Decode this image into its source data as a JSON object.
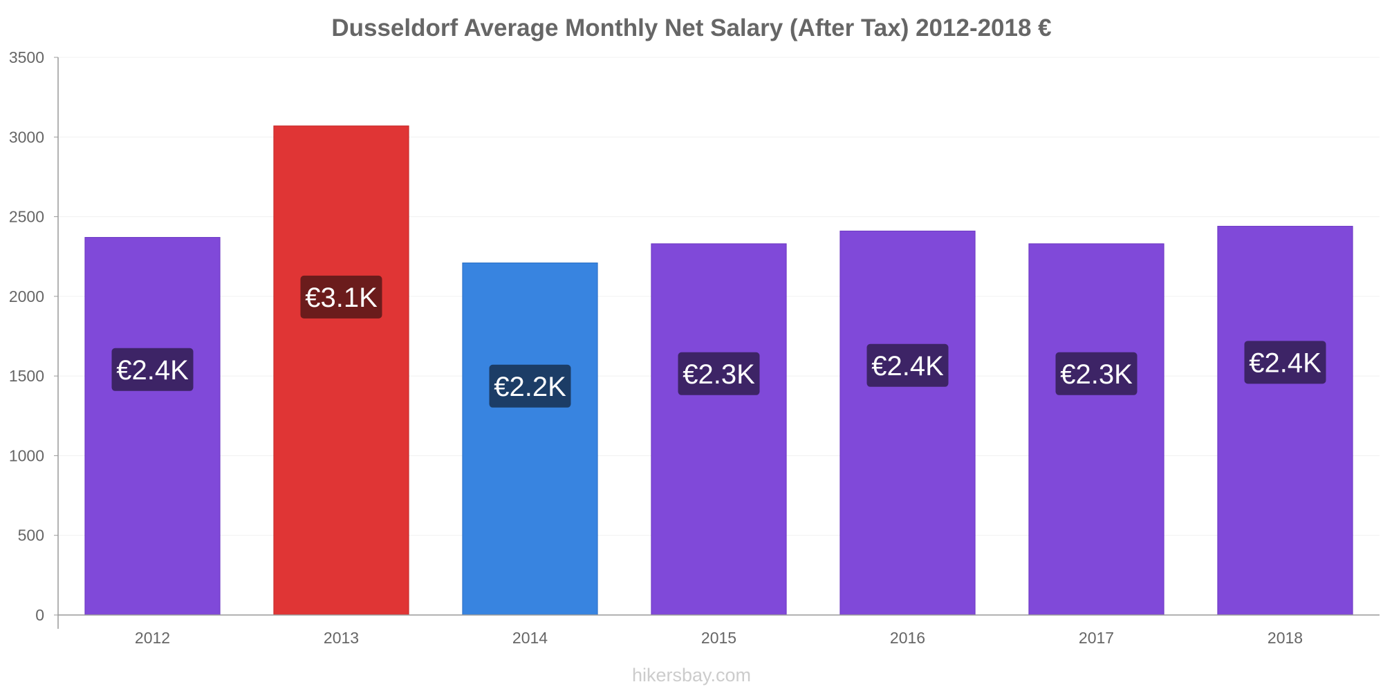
{
  "chart_data": {
    "type": "bar",
    "title": "Dusseldorf Average Monthly Net Salary (After Tax) 2012-2018 €",
    "xlabel": "",
    "ylabel": "",
    "ylim": [
      0,
      3500
    ],
    "yticks": [
      "0",
      "500",
      "1000",
      "1500",
      "2000",
      "2500",
      "3000",
      "3500"
    ],
    "grid": true,
    "categories": [
      "2012",
      "2013",
      "2014",
      "2015",
      "2016",
      "2017",
      "2018"
    ],
    "values": [
      2370,
      3070,
      2210,
      2330,
      2410,
      2330,
      2440
    ],
    "data_labels": [
      "€2.4K",
      "€3.1K",
      "€2.2K",
      "€2.3K",
      "€2.4K",
      "€2.3K",
      "€2.4K"
    ],
    "bar_colors": [
      "#8049d9",
      "#e03535",
      "#3884e0",
      "#8049d9",
      "#8049d9",
      "#8049d9",
      "#8049d9"
    ],
    "bar_edge_colors": [
      "#6a35c2",
      "#c42a2a",
      "#2a6ec4",
      "#6a35c2",
      "#6a35c2",
      "#6a35c2",
      "#6a35c2"
    ],
    "label_bg_colors": [
      "#3d2466",
      "#6b1c1c",
      "#1c3d66",
      "#3d2466",
      "#3d2466",
      "#3d2466",
      "#3d2466"
    ]
  },
  "watermark": "hikersbay.com"
}
